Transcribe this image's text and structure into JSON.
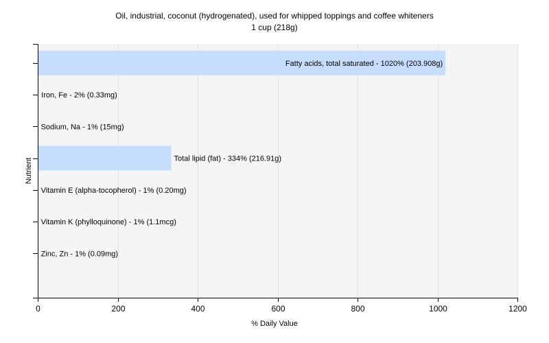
{
  "chart_data": {
    "type": "bar",
    "orientation": "horizontal",
    "title": "Oil, industrial, coconut (hydrogenated), used for whipped toppings and coffee whiteners",
    "subtitle": "1 cup (218g)",
    "xlabel": "% Daily Value",
    "ylabel": "Nutrient",
    "xlim": [
      0,
      1200
    ],
    "xticks": [
      "0",
      "200",
      "400",
      "600",
      "800",
      "1000",
      "1200"
    ],
    "grid": true,
    "bar_color": "#c6defc",
    "bars": [
      {
        "label": "Fatty acids, total saturated - 1020% (203.908g)",
        "value": 1020
      },
      {
        "label": "Iron, Fe - 2% (0.33mg)",
        "value": 2
      },
      {
        "label": "Sodium, Na - 1% (15mg)",
        "value": 1
      },
      {
        "label": "Total lipid (fat) - 334% (216.91g)",
        "value": 334
      },
      {
        "label": "Vitamin E (alpha-tocopherol) - 1% (0.20mg)",
        "value": 1
      },
      {
        "label": "Vitamin K (phylloquinone) - 1% (1.1mcg)",
        "value": 1
      },
      {
        "label": "Zinc, Zn - 1% (0.09mg)",
        "value": 1
      }
    ]
  }
}
